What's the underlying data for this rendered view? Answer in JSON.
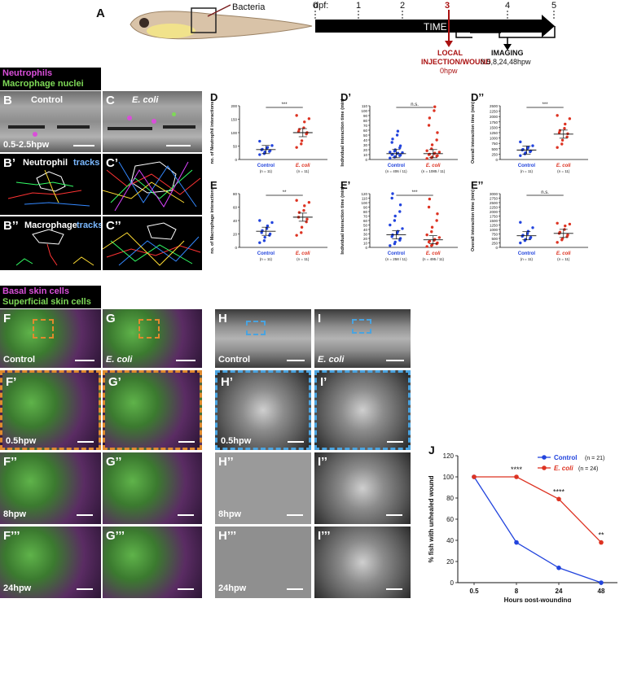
{
  "colors": {
    "control": "#2244dd",
    "ecoli": "#dd3322",
    "neutrophil": "#d94fd9",
    "macrophage": "#7ed957",
    "timeline": "#000000",
    "injection": "#aa1111",
    "wound_box_fluor": "#e08a2e",
    "wound_box_sem": "#4aa3df"
  },
  "panelA": {
    "label": "A",
    "bacteria_label": "Bacteria",
    "dpf_label": "dpf:",
    "days": [
      "0",
      "1",
      "2",
      "3",
      "4",
      "5"
    ],
    "time_label": "TIME",
    "injection_label_1": "LOCAL",
    "injection_label_2": "INJECTION/WOUND",
    "injection_time": "0hpw",
    "imaging_label": "IMAGING",
    "imaging_times": "0.5,8,24,48hpw"
  },
  "legend_cells": {
    "line1": "Neutrophils",
    "line2": "Macrophage nuclei"
  },
  "legend_skin": {
    "line1": "Basal skin cells",
    "line2": "Superficial skin cells"
  },
  "micro": {
    "B": {
      "label": "B",
      "title": "Control",
      "time": "0.5-2.5hpw"
    },
    "C": {
      "label": "C",
      "title": "E. coli"
    },
    "B1": {
      "label": "B’",
      "title_1": "Neutrophil ",
      "title_2": "tracks"
    },
    "C1": {
      "label": "C’"
    },
    "B2": {
      "label": "B’’",
      "title_1": "Macrophage ",
      "title_2": "tracks"
    },
    "C2": {
      "label": "C’’"
    },
    "F": {
      "label": "F",
      "title": "Control"
    },
    "G": {
      "label": "G",
      "title": "E. coli"
    },
    "F1": {
      "label": "F’",
      "time": "0.5hpw"
    },
    "G1": {
      "label": "G’"
    },
    "F2": {
      "label": "F’’",
      "time": "8hpw"
    },
    "G2": {
      "label": "G’’"
    },
    "F3": {
      "label": "F’’’",
      "time": "24hpw"
    },
    "G3": {
      "label": "G’’’"
    },
    "H": {
      "label": "H",
      "title": "Control"
    },
    "I": {
      "label": "I",
      "title": "E. coli"
    },
    "H1": {
      "label": "H’",
      "time": "0.5hpw"
    },
    "I1": {
      "label": "I’"
    },
    "H2": {
      "label": "H’’",
      "time": "8hpw"
    },
    "I2": {
      "label": "I’’"
    },
    "H3": {
      "label": "H’’’",
      "time": "24hpw"
    },
    "I3": {
      "label": "I’’’"
    }
  },
  "chart_data": [
    {
      "id": "D",
      "label": "D",
      "type": "scatter",
      "ylabel": "no. of Neutrophil interactions",
      "ylim": [
        0,
        200
      ],
      "yticks": [
        "0",
        "50",
        "100",
        "150",
        "200"
      ],
      "categories": [
        "Control",
        "E. coli"
      ],
      "n_labels": [
        "(n = 11)",
        "(n = 11)"
      ],
      "significance": "***",
      "series": [
        {
          "name": "Control",
          "values": [
            18,
            22,
            28,
            30,
            33,
            36,
            38,
            42,
            45,
            52,
            68
          ],
          "mean": 37
        },
        {
          "name": "E. coli",
          "values": [
            45,
            58,
            70,
            95,
            100,
            104,
            112,
            118,
            140,
            152,
            164
          ],
          "mean": 100
        }
      ]
    },
    {
      "id": "D1",
      "label": "D’",
      "type": "scatter",
      "ylabel": "Individual interaction time (min)",
      "ylim": [
        0,
        110
      ],
      "yticks": [
        "0",
        "10",
        "20",
        "30",
        "40",
        "50",
        "60",
        "70",
        "80",
        "90",
        "100",
        "110"
      ],
      "categories": [
        "Control",
        "E. coli"
      ],
      "n_labels": [
        "(n = 406 / 11)",
        "(n = 1085 / 11)"
      ],
      "significance": "n.s.",
      "series": [
        {
          "name": "Control",
          "values": [
            3,
            5,
            6,
            8,
            9,
            10,
            11,
            12,
            13,
            14,
            15,
            17,
            20,
            24,
            28,
            35,
            42,
            50,
            58
          ],
          "mean": 12
        },
        {
          "name": "E. coli",
          "values": [
            2,
            4,
            5,
            7,
            8,
            10,
            11,
            12,
            13,
            15,
            18,
            22,
            30,
            40,
            55,
            70,
            85,
            100,
            108
          ],
          "mean": 12
        }
      ]
    },
    {
      "id": "D2",
      "label": "D’’",
      "type": "scatter",
      "ylabel": "Overall interaction time (min)",
      "ylim": [
        0,
        2500
      ],
      "yticks": [
        "0",
        "250",
        "500",
        "750",
        "1000",
        "1250",
        "1500",
        "1750",
        "2000",
        "2250",
        "2500"
      ],
      "categories": [
        "Control",
        "E. coli"
      ],
      "n_labels": [
        "(n = 11)",
        "(n = 11)"
      ],
      "significance": "***",
      "series": [
        {
          "name": "Control",
          "values": [
            180,
            260,
            320,
            360,
            400,
            440,
            470,
            520,
            560,
            640,
            820
          ],
          "mean": 440
        },
        {
          "name": "E. coli",
          "values": [
            560,
            720,
            900,
            1050,
            1200,
            1250,
            1350,
            1450,
            1650,
            1900,
            2050
          ],
          "mean": 1180
        }
      ]
    },
    {
      "id": "E",
      "label": "E",
      "type": "scatter",
      "ylabel": "no. of Macrophage interactions",
      "ylim": [
        0,
        80
      ],
      "yticks": [
        "0",
        "20",
        "40",
        "60",
        "80"
      ],
      "categories": [
        "Control",
        "E. coli"
      ],
      "n_labels": [
        "(n = 11)",
        "(n = 11)"
      ],
      "significance": "**",
      "series": [
        {
          "name": "Control",
          "values": [
            7,
            10,
            15,
            18,
            20,
            22,
            25,
            28,
            32,
            37,
            40
          ],
          "mean": 24
        },
        {
          "name": "E. coli",
          "values": [
            18,
            22,
            30,
            38,
            42,
            45,
            52,
            55,
            62,
            67,
            70
          ],
          "mean": 45
        }
      ]
    },
    {
      "id": "E1",
      "label": "E’",
      "type": "scatter",
      "ylabel": "Individual interaction time (min)",
      "ylim": [
        0,
        120
      ],
      "yticks": [
        "0",
        "10",
        "20",
        "30",
        "40",
        "50",
        "60",
        "70",
        "80",
        "90",
        "100",
        "110",
        "120"
      ],
      "categories": [
        "Control",
        "E. coli"
      ],
      "n_labels": [
        "(n = 258 / 11)",
        "(n = 495 / 11)"
      ],
      "significance": "***",
      "series": [
        {
          "name": "Control",
          "values": [
            4,
            8,
            12,
            16,
            20,
            24,
            28,
            32,
            36,
            42,
            50,
            60,
            70,
            80,
            95,
            110,
            120
          ],
          "mean": 28
        },
        {
          "name": "E. coli",
          "values": [
            2,
            4,
            6,
            8,
            10,
            12,
            14,
            16,
            18,
            22,
            28,
            35,
            45,
            60,
            75,
            90,
            108
          ],
          "mean": 17
        }
      ]
    },
    {
      "id": "E2",
      "label": "E’’",
      "type": "scatter",
      "ylabel": "Overall interaction time (min)",
      "ylim": [
        0,
        3000
      ],
      "yticks": [
        "0",
        "250",
        "500",
        "750",
        "1000",
        "1250",
        "1500",
        "1750",
        "2000",
        "2250",
        "2500",
        "2750",
        "3000"
      ],
      "categories": [
        "Control",
        "E. coli"
      ],
      "n_labels": [
        "(n = 11)",
        "(n = 11)"
      ],
      "significance": "n.s.",
      "series": [
        {
          "name": "Control",
          "values": [
            250,
            380,
            450,
            500,
            560,
            620,
            680,
            760,
            900,
            1100,
            1400
          ],
          "mean": 650
        },
        {
          "name": "E. coli",
          "values": [
            280,
            420,
            500,
            600,
            700,
            780,
            850,
            1000,
            1200,
            1300,
            1350
          ],
          "mean": 780
        }
      ]
    },
    {
      "id": "J",
      "label": "J",
      "type": "line",
      "ylabel": "% fish with unhealed wound",
      "xlabel": "Hours post-wounding",
      "ylim": [
        0,
        120
      ],
      "yticks": [
        "0",
        "20",
        "40",
        "60",
        "80",
        "100",
        "120"
      ],
      "categories": [
        "0.5",
        "8",
        "24",
        "48"
      ],
      "series": [
        {
          "name": "Control",
          "n": "(n = 21)",
          "values": [
            100,
            38,
            14,
            0
          ]
        },
        {
          "name": "E. coli",
          "n": "(n = 24)",
          "values": [
            100,
            100,
            79,
            38
          ]
        }
      ],
      "annotations": [
        "****",
        "****",
        "**"
      ]
    }
  ]
}
